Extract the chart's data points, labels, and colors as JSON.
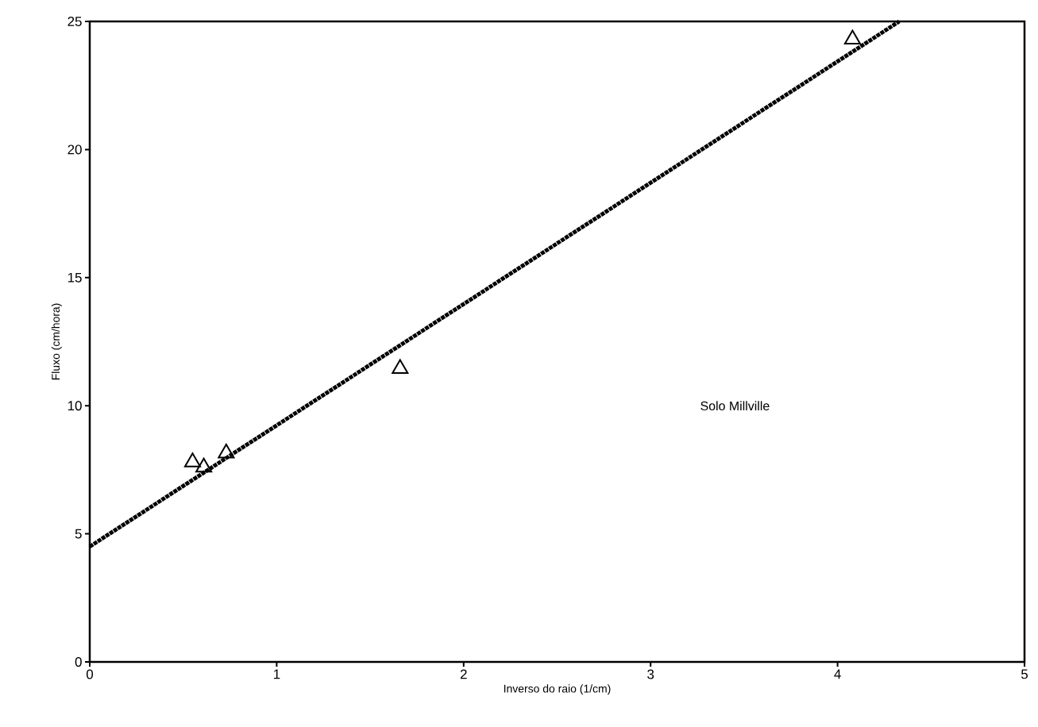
{
  "chart_data": {
    "type": "scatter",
    "xlabel": "Inverso do raio (1/cm)",
    "ylabel": "Fluxo (cm/hora)",
    "xlim": [
      0,
      5
    ],
    "ylim": [
      0,
      25
    ],
    "xticks": [
      0,
      1,
      2,
      3,
      4,
      5
    ],
    "yticks": [
      0,
      5,
      10,
      15,
      20,
      25
    ],
    "marker": "triangle",
    "annotations": [
      "Solo Millville"
    ],
    "series": [
      {
        "type": "scatter",
        "color": "#000000",
        "x": [
          0.55,
          0.61,
          0.73,
          1.66,
          4.08
        ],
        "values": [
          7.8,
          7.6,
          8.15,
          11.45,
          24.3
        ]
      },
      {
        "type": "line",
        "color": "#000000",
        "line_style": "dotted",
        "marker": "none",
        "x": [
          0,
          4.33
        ],
        "values": [
          4.5,
          25
        ]
      }
    ]
  }
}
